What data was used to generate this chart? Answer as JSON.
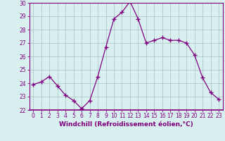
{
  "x": [
    0,
    1,
    2,
    3,
    4,
    5,
    6,
    7,
    8,
    9,
    10,
    11,
    12,
    13,
    14,
    15,
    16,
    17,
    18,
    19,
    20,
    21,
    22,
    23
  ],
  "y": [
    23.9,
    24.1,
    24.5,
    23.8,
    23.1,
    22.7,
    22.1,
    22.7,
    24.5,
    26.7,
    28.8,
    29.3,
    30.1,
    28.8,
    27.0,
    27.2,
    27.4,
    27.2,
    27.2,
    27.0,
    26.1,
    24.4,
    23.3,
    22.8
  ],
  "line_color": "#800080",
  "marker": "+",
  "marker_size": 4,
  "marker_lw": 1.0,
  "bg_color": "#d9f0f0",
  "grid_color": "#b0c8c8",
  "xlabel": "Windchill (Refroidissement éolien,°C)",
  "xlabel_color": "#800080",
  "tick_color": "#800080",
  "spine_color": "#800080",
  "ylim": [
    22,
    30
  ],
  "xlim": [
    -0.5,
    23.5
  ],
  "yticks": [
    22,
    23,
    24,
    25,
    26,
    27,
    28,
    29,
    30
  ],
  "xticks": [
    0,
    1,
    2,
    3,
    4,
    5,
    6,
    7,
    8,
    9,
    10,
    11,
    12,
    13,
    14,
    15,
    16,
    17,
    18,
    19,
    20,
    21,
    22,
    23
  ],
  "tick_fontsize": 5.5,
  "ylabel_fontsize": 6,
  "xlabel_fontsize": 6.5
}
